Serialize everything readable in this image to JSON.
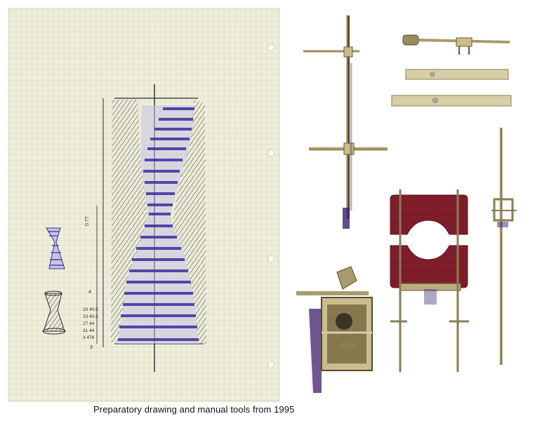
{
  "caption": "Preparatory drawing and manual tools from 1995",
  "drawing": {
    "annotations": {
      "top_mark": "0.77",
      "side_mark": "4",
      "rows": [
        "20  40.5",
        "23  40.5",
        "27  44",
        "31  44",
        "3  476"
      ],
      "bottom_mark": "3"
    }
  },
  "colors": {
    "paper": "#efeed9",
    "grid": "#b9c3ae",
    "ink_black": "#2b2b3a",
    "ink_blue": "#3a2f9c",
    "metal": "#a89c6e",
    "metal_light": "#d8cfa8",
    "felt": "#7e1c2a",
    "shadow": "#3d1d6e"
  }
}
